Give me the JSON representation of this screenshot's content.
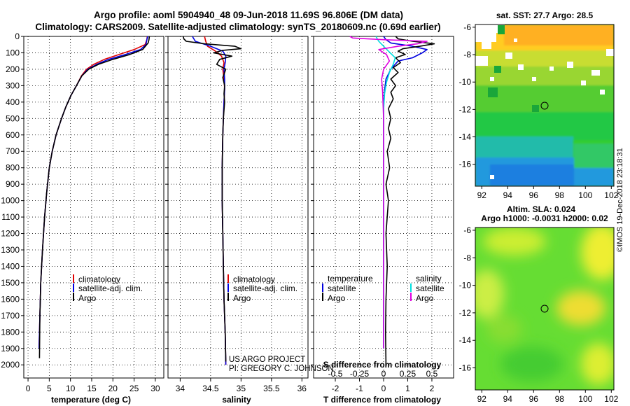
{
  "header": {
    "title_line1": "Argo profile: aoml 5904940_48 09-Jun-2018 11.69S 96.806E (DM data)",
    "title_line2": "Climatology: CARS2009. Satellite-adjusted climatology: synTS_20180609.nc (0.69d earlier)"
  },
  "credit": {
    "project": "US ARGO PROJECT",
    "pi": "PI: GREGORY C. JOHNSON",
    "imos": "©IMOS 19-Dec-2018 23:18:31"
  },
  "colors": {
    "climatology": "#e00000",
    "satellite": "#0000e0",
    "argo": "#000000",
    "sat_salinity": "#00e0e0",
    "argo_salinity": "#e000e0"
  },
  "chart_data": [
    {
      "id": "temperature",
      "type": "line",
      "xlabel": "temperature (deg C)",
      "ylabel": "",
      "xlim": [
        -1,
        32
      ],
      "ylim": [
        0,
        2080
      ],
      "xticks": [
        "0",
        "5",
        "10",
        "15",
        "20",
        "25",
        "30"
      ],
      "xtick_values": [
        0,
        5,
        10,
        15,
        20,
        25,
        30
      ],
      "yticks": [
        "0",
        "100",
        "200",
        "300",
        "400",
        "500",
        "600",
        "700",
        "800",
        "900",
        "1000",
        "1100",
        "1200",
        "1300",
        "1400",
        "1500",
        "1600",
        "1700",
        "1800",
        "1900",
        "2000"
      ],
      "legend": [
        "climatology",
        "satellite-adj. clim.",
        "Argo"
      ],
      "series": [
        {
          "name": "climatology",
          "color": "#e00000",
          "x": [
            28.1,
            28.0,
            27.6,
            25.0,
            21.5,
            18.0,
            15.5,
            13.8,
            12.6,
            11.4,
            10.1,
            8.9,
            7.9,
            6.6,
            5.7,
            5.0,
            4.4,
            3.9,
            3.4,
            3.0,
            2.8,
            2.6
          ],
          "y": [
            0,
            20,
            50,
            80,
            110,
            140,
            170,
            200,
            240,
            300,
            360,
            430,
            500,
            600,
            700,
            800,
            950,
            1100,
            1300,
            1500,
            1700,
            1900
          ]
        },
        {
          "name": "satellite-adj. clim.",
          "color": "#0000e0",
          "x": [
            28.2,
            28.0,
            27.8,
            26.5,
            23.0,
            19.0,
            16.2,
            14.1,
            12.7,
            11.4,
            10.1,
            8.9,
            7.9,
            6.6,
            5.7,
            5.0,
            4.4,
            3.9,
            3.4,
            3.0,
            2.8,
            2.6
          ],
          "y": [
            0,
            20,
            50,
            80,
            110,
            140,
            170,
            200,
            240,
            300,
            360,
            430,
            500,
            600,
            700,
            800,
            950,
            1100,
            1300,
            1500,
            1700,
            1900
          ]
        },
        {
          "name": "Argo",
          "color": "#000000",
          "x": [
            28.6,
            28.5,
            28.3,
            27.0,
            24.0,
            20.0,
            16.6,
            14.3,
            12.7,
            11.4,
            10.1,
            8.9,
            7.9,
            6.6,
            5.7,
            5.0,
            4.4,
            3.9,
            3.4,
            3.0,
            2.8,
            2.7
          ],
          "y": [
            0,
            20,
            40,
            80,
            110,
            140,
            170,
            200,
            240,
            300,
            360,
            430,
            500,
            600,
            700,
            800,
            950,
            1100,
            1300,
            1500,
            1700,
            1960
          ]
        }
      ]
    },
    {
      "id": "salinity",
      "type": "line",
      "xlabel": "salinity",
      "ylabel": "",
      "xlim": [
        33.8,
        36.1
      ],
      "ylim": [
        0,
        2080
      ],
      "xticks": [
        "34",
        "34.5",
        "35",
        "35.5",
        "36"
      ],
      "xtick_values": [
        34,
        34.5,
        35,
        35.5,
        36
      ],
      "legend": [
        "climatology",
        "satellite-adj. clim.",
        "Argo"
      ],
      "series": [
        {
          "name": "climatology",
          "color": "#e00000",
          "x": [
            34.4,
            34.42,
            34.45,
            34.58,
            34.68,
            34.72,
            34.7,
            34.72,
            34.73,
            34.72,
            34.71,
            34.7,
            34.69,
            34.69,
            34.7,
            34.71,
            34.72,
            34.74,
            34.75
          ],
          "y": [
            0,
            30,
            60,
            90,
            120,
            160,
            200,
            260,
            320,
            400,
            500,
            600,
            800,
            1000,
            1200,
            1400,
            1600,
            1800,
            2000
          ]
        },
        {
          "name": "satellite-adj. clim.",
          "color": "#0000e0",
          "x": [
            34.2,
            34.25,
            34.5,
            34.7,
            34.75,
            34.74,
            34.72,
            34.73,
            34.73,
            34.72,
            34.71,
            34.7,
            34.69,
            34.69,
            34.7,
            34.71,
            34.72,
            34.74,
            34.75
          ],
          "y": [
            0,
            30,
            60,
            90,
            120,
            160,
            200,
            260,
            320,
            400,
            500,
            600,
            800,
            1000,
            1200,
            1400,
            1600,
            1800,
            2000
          ]
        },
        {
          "name": "Argo",
          "color": "#000000",
          "x": [
            34.05,
            34.06,
            34.1,
            34.4,
            34.9,
            35.0,
            34.7,
            34.55,
            34.85,
            34.65,
            34.6,
            34.75,
            34.7,
            34.73,
            34.72,
            34.73,
            34.71,
            34.7,
            34.69,
            34.69,
            34.7,
            34.71,
            34.72,
            34.74,
            34.75
          ],
          "y": [
            0,
            15,
            30,
            45,
            60,
            75,
            85,
            100,
            120,
            140,
            170,
            200,
            250,
            300,
            350,
            400,
            500,
            600,
            800,
            1000,
            1200,
            1400,
            1600,
            1800,
            1980
          ]
        }
      ]
    },
    {
      "id": "difference",
      "type": "line",
      "xlabel": "T difference from climatology",
      "xlabel_top": "S difference from climatology",
      "ylabel": "",
      "xlim": [
        -2.9,
        2.9
      ],
      "ylim": [
        0,
        2080
      ],
      "xticks": [
        "-2",
        "-1",
        "0",
        "1",
        "2"
      ],
      "xtick_values": [
        -2,
        -1,
        0,
        1,
        2
      ],
      "sticks": [
        "-0.5",
        "-0.25",
        "0",
        "0.25",
        "0.5"
      ],
      "stick_values": [
        -0.5,
        -0.25,
        0,
        0.25,
        0.5
      ],
      "legend_left_title": "temperature",
      "legend_right_title": "salinity",
      "legend_left": [
        "satellite",
        "Argo"
      ],
      "legend_right": [
        "satellite",
        "Argo"
      ],
      "series": [
        {
          "name": "T satellite",
          "color": "#0000e0",
          "x": [
            0.0,
            0.1,
            0.3,
            1.2,
            1.8,
            1.6,
            1.2,
            0.6,
            0.3,
            0.1,
            0.05,
            0.0,
            0.0,
            0.0,
            0.0
          ],
          "y": [
            0,
            20,
            40,
            60,
            80,
            100,
            130,
            150,
            200,
            260,
            320,
            400,
            600,
            1000,
            1900
          ]
        },
        {
          "name": "T Argo",
          "color": "#000000",
          "x": [
            0.5,
            0.6,
            1.2,
            2.1,
            1.5,
            0.8,
            0.6,
            0.9,
            0.5,
            0.7,
            0.4,
            0.6,
            0.3,
            0.5,
            0.3,
            0.4,
            0.2,
            0.3,
            0.2,
            0.3,
            0.15,
            0.25,
            0.1,
            0.2,
            0.1,
            0.15,
            0.1,
            0.08,
            0.1
          ],
          "y": [
            0,
            15,
            30,
            45,
            60,
            75,
            90,
            110,
            130,
            160,
            190,
            220,
            260,
            300,
            340,
            380,
            440,
            500,
            560,
            620,
            700,
            800,
            900,
            1000,
            1200,
            1400,
            1600,
            1800,
            2000
          ]
        },
        {
          "name": "S satellite",
          "color": "#00e0e0",
          "x": [
            -0.08,
            -0.05,
            0.0,
            0.05,
            0.12,
            0.1,
            0.06,
            0.03,
            0.01,
            0.0,
            0.0,
            0.0,
            0.0
          ],
          "y": [
            0,
            30,
            60,
            90,
            130,
            170,
            220,
            280,
            350,
            450,
            700,
            1100,
            1900
          ]
        },
        {
          "name": "S Argo",
          "color": "#e000e0",
          "x": [
            -0.35,
            -0.32,
            0.0,
            0.45,
            0.35,
            0.15,
            -0.05,
            0.03,
            0.06,
            0.0,
            -0.02,
            -0.01,
            0.0,
            0.0,
            0.0
          ],
          "y": [
            0,
            10,
            20,
            30,
            45,
            60,
            80,
            110,
            150,
            200,
            260,
            340,
            500,
            900,
            1900
          ]
        }
      ]
    },
    {
      "id": "sst-map",
      "type": "heatmap",
      "title": "sat. SST: 27.7 Argo: 28.5",
      "xlim": [
        91.5,
        102.2
      ],
      "ylim": [
        -17.6,
        -5.8
      ],
      "xticks": [
        "92",
        "94",
        "96",
        "98",
        "100",
        "102"
      ],
      "xtick_values": [
        92,
        94,
        96,
        98,
        100,
        102
      ],
      "yticks": [
        "-6",
        "-8",
        "-10",
        "-12",
        "-14",
        "-16"
      ],
      "ytick_values": [
        -6,
        -8,
        -10,
        -12,
        -14,
        -16
      ],
      "marker": {
        "lon": 96.806,
        "lat": -11.69
      }
    },
    {
      "id": "sla-map",
      "type": "heatmap",
      "title": "Altim. SLA: 0.024",
      "subtitle": "Argo h1000: -0.0031 h2000: 0.02",
      "xlim": [
        91.5,
        102.2
      ],
      "ylim": [
        -17.6,
        -5.8
      ],
      "xticks": [
        "92",
        "94",
        "96",
        "98",
        "100",
        "102"
      ],
      "xtick_values": [
        92,
        94,
        96,
        98,
        100,
        102
      ],
      "yticks": [
        "-6",
        "-8",
        "-10",
        "-12",
        "-14",
        "-16"
      ],
      "ytick_values": [
        -6,
        -8,
        -10,
        -12,
        -14,
        -16
      ],
      "marker": {
        "lon": 96.806,
        "lat": -11.69
      }
    }
  ]
}
